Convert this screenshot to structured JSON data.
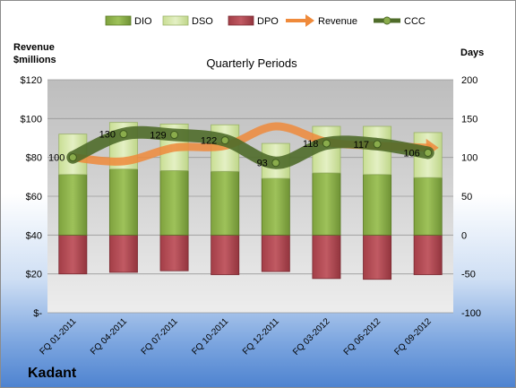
{
  "company": "Kadant",
  "chart_data": {
    "type": "bar",
    "title": "Quarterly Periods",
    "left_axis_label_line1": "Revenue",
    "left_axis_label_line2": "$millions",
    "right_axis_label": "Days",
    "left_ylim": [
      0,
      120
    ],
    "right_ylim": [
      -100,
      200
    ],
    "left_ticks": [
      "$-",
      "$20",
      "$40",
      "$60",
      "$80",
      "$100",
      "$120"
    ],
    "right_ticks": [
      "-100",
      "-50",
      "0",
      "50",
      "100",
      "150",
      "200"
    ],
    "categories": [
      "FQ 01-2011",
      "FQ 04-2011",
      "FQ 07-2011",
      "FQ 10-2011",
      "FQ 12-2011",
      "FQ 03-2012",
      "FQ 06-2012",
      "FQ 09-2012"
    ],
    "legend": [
      "DIO",
      "DSO",
      "DPO",
      "Revenue",
      "CCC"
    ],
    "grid": true,
    "legend_position": "top",
    "series": [
      {
        "name": "DIO",
        "axis": "right",
        "kind": "stacked-bar",
        "values": [
          78,
          85,
          83,
          82,
          73,
          80,
          78,
          74
        ],
        "color": "#8cb04a"
      },
      {
        "name": "DSO",
        "axis": "right",
        "kind": "stacked-bar",
        "values": [
          52,
          60,
          60,
          60,
          45,
          60,
          62,
          58
        ],
        "color": "#d4e6a5"
      },
      {
        "name": "DPO",
        "axis": "right",
        "kind": "bar",
        "values": [
          -50,
          -48,
          -46,
          -51,
          -47,
          -56,
          -57,
          -51
        ],
        "color": "#b74c55"
      },
      {
        "name": "Revenue",
        "axis": "left",
        "kind": "line",
        "values": [
          80,
          78,
          85,
          86,
          96,
          88,
          86,
          85
        ],
        "color": "#ef8a3b"
      },
      {
        "name": "CCC",
        "axis": "right",
        "kind": "line",
        "values": [
          100,
          130,
          129,
          122,
          93,
          118,
          117,
          106
        ],
        "color": "#4f6c2a"
      }
    ],
    "data_labels": [
      "100",
      "130",
      "129",
      "122",
      "93",
      "118",
      "117",
      "106"
    ]
  }
}
